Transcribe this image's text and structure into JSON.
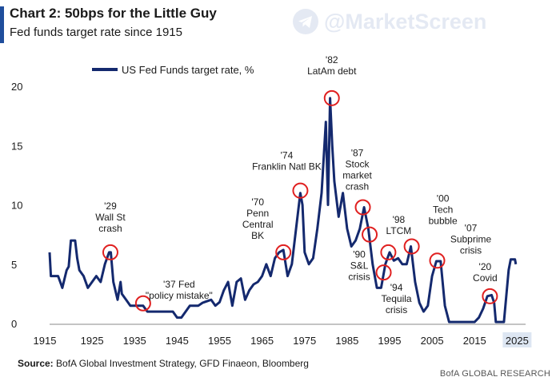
{
  "header": {
    "title": "Chart 2: 50bps for the Little Guy",
    "subtitle": "Fed funds target rate since 1915"
  },
  "watermark": {
    "text": "@MarketScreen",
    "icon": "telegram-icon",
    "color": "#1f4e9c"
  },
  "footer": {
    "source_label": "Source:",
    "source_text": " BofA Global Investment Strategy, GFD Finaeon, Bloomberg",
    "credit": "BofA GLOBAL RESEARCH"
  },
  "colors": {
    "line": "#14296e",
    "marker": "#e02020",
    "accent": "#1f4e9c"
  },
  "chart_data": {
    "type": "line",
    "title": "Chart 2: 50bps for the Little Guy",
    "subtitle": "Fed funds target rate since 1915",
    "xlabel": "",
    "ylabel": "",
    "xlim": [
      1915,
      2027
    ],
    "ylim": [
      0,
      20
    ],
    "x_ticks": [
      1915,
      1925,
      1935,
      1945,
      1955,
      1965,
      1975,
      1985,
      1995,
      2005,
      2015,
      2025
    ],
    "y_ticks": [
      0,
      5,
      10,
      15,
      20
    ],
    "grid": false,
    "legend": "top-left",
    "series": [
      {
        "name": "US Fed Funds target rate, %",
        "points": [
          [
            1915,
            6
          ],
          [
            1915.3,
            4
          ],
          [
            1917,
            4
          ],
          [
            1917.5,
            3.5
          ],
          [
            1918,
            3
          ],
          [
            1919,
            4.5
          ],
          [
            1919.5,
            4.8
          ],
          [
            1920,
            7
          ],
          [
            1921,
            7
          ],
          [
            1921.5,
            5.5
          ],
          [
            1922,
            4.5
          ],
          [
            1923,
            4
          ],
          [
            1924,
            3
          ],
          [
            1925,
            3.5
          ],
          [
            1926,
            4
          ],
          [
            1927,
            3.5
          ],
          [
            1928,
            5
          ],
          [
            1929,
            6
          ],
          [
            1929.4,
            6
          ],
          [
            1930,
            3.5
          ],
          [
            1931,
            2
          ],
          [
            1931.7,
            3.5
          ],
          [
            1932,
            2.5
          ],
          [
            1933,
            2
          ],
          [
            1934,
            1.5
          ],
          [
            1935,
            1.5
          ],
          [
            1936,
            1.5
          ],
          [
            1937,
            1.5
          ],
          [
            1938,
            1
          ],
          [
            1944,
            1
          ],
          [
            1945,
            0.5
          ],
          [
            1946,
            0.5
          ],
          [
            1948,
            1.5
          ],
          [
            1950,
            1.5
          ],
          [
            1951,
            1.75
          ],
          [
            1953,
            2
          ],
          [
            1954,
            1.5
          ],
          [
            1955,
            1.8
          ],
          [
            1956,
            2.8
          ],
          [
            1957,
            3.5
          ],
          [
            1958,
            1.5
          ],
          [
            1959,
            3.5
          ],
          [
            1960,
            3.8
          ],
          [
            1961,
            2
          ],
          [
            1962,
            2.8
          ],
          [
            1963,
            3.3
          ],
          [
            1964,
            3.5
          ],
          [
            1965,
            4
          ],
          [
            1966,
            5
          ],
          [
            1967,
            4
          ],
          [
            1968,
            5.5
          ],
          [
            1969,
            6
          ],
          [
            1970,
            6.2
          ],
          [
            1971,
            4
          ],
          [
            1972,
            5
          ],
          [
            1973,
            8
          ],
          [
            1974,
            11
          ],
          [
            1974.5,
            10
          ],
          [
            1975,
            6
          ],
          [
            1976,
            5
          ],
          [
            1977,
            5.5
          ],
          [
            1978,
            8
          ],
          [
            1979,
            11
          ],
          [
            1980,
            17
          ],
          [
            1980.5,
            10
          ],
          [
            1981,
            19
          ],
          [
            1981.5,
            15
          ],
          [
            1982,
            12
          ],
          [
            1983,
            9
          ],
          [
            1984,
            11
          ],
          [
            1985,
            8
          ],
          [
            1986,
            6.5
          ],
          [
            1987,
            7
          ],
          [
            1988,
            8
          ],
          [
            1989,
            9.8
          ],
          [
            1990,
            8
          ],
          [
            1991,
            5
          ],
          [
            1992,
            3
          ],
          [
            1993,
            3
          ],
          [
            1994,
            5
          ],
          [
            1995,
            6
          ],
          [
            1996,
            5.3
          ],
          [
            1997,
            5.5
          ],
          [
            1998,
            5
          ],
          [
            1999,
            5
          ],
          [
            2000,
            6.5
          ],
          [
            2001,
            3.5
          ],
          [
            2002,
            1.75
          ],
          [
            2003,
            1
          ],
          [
            2004,
            1.5
          ],
          [
            2005,
            4
          ],
          [
            2006,
            5.25
          ],
          [
            2007,
            5.25
          ],
          [
            2008,
            1.5
          ],
          [
            2009,
            0.125
          ],
          [
            2015,
            0.125
          ],
          [
            2016,
            0.5
          ],
          [
            2017,
            1.25
          ],
          [
            2018,
            2.3
          ],
          [
            2019,
            2.4
          ],
          [
            2019.6,
            1.75
          ],
          [
            2020,
            0.125
          ],
          [
            2021.9,
            0.125
          ],
          [
            2022.5,
            2.5
          ],
          [
            2023,
            4.5
          ],
          [
            2023.5,
            5.4
          ],
          [
            2024.5,
            5.4
          ],
          [
            2024.7,
            5
          ]
        ]
      }
    ],
    "annotations": [
      {
        "label": [
          "'29",
          "Wall St",
          "crash"
        ],
        "x": 1929.3,
        "y": 6.0
      },
      {
        "label": [
          "'37 Fed",
          "\"policy mistake\""
        ],
        "x": 1937.0,
        "y": 1.7
      },
      {
        "label": [
          "'70",
          "Penn",
          "Central",
          "BK"
        ],
        "x": 1970.0,
        "y": 6.0
      },
      {
        "label": [
          "'74",
          "Franklin Natl BK"
        ],
        "x": 1974.0,
        "y": 11.2
      },
      {
        "label": [
          "'82",
          "LatAm debt"
        ],
        "x": 1981.4,
        "y": 19.0
      },
      {
        "label": [
          "'87",
          "Stock",
          "market",
          "crash"
        ],
        "x": 1988.7,
        "y": 9.8
      },
      {
        "label": [
          "'90",
          "S&L",
          "crisis"
        ],
        "x": 1990.3,
        "y": 7.5
      },
      {
        "label": [
          "'94",
          "Tequila",
          "crisis"
        ],
        "x": 1993.6,
        "y": 4.3
      },
      {
        "label": [
          "'98",
          "LTCM"
        ],
        "x": 1994.7,
        "y": 6.0
      },
      {
        "label": [
          "'00",
          "Tech",
          "bubble"
        ],
        "x": 2000.2,
        "y": 6.5
      },
      {
        "label": [
          "'07",
          "Subprime",
          "crisis"
        ],
        "x": 2006.2,
        "y": 5.3
      },
      {
        "label": [
          "'20",
          "Covid"
        ],
        "x": 2018.6,
        "y": 2.3
      }
    ]
  }
}
